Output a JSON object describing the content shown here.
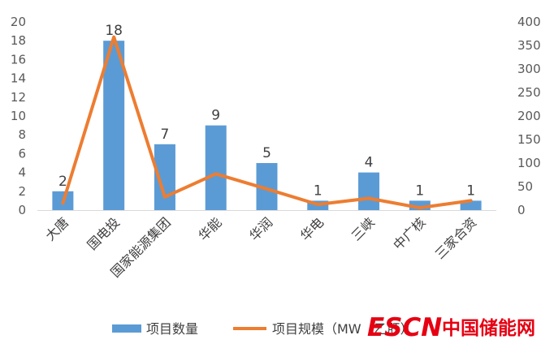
{
  "chart_data": {
    "type": "bar",
    "categories": [
      "大唐",
      "国电投",
      "国家能源集团",
      "华能",
      "华润",
      "华电",
      "三峡",
      "中广核",
      "三家合资"
    ],
    "series": [
      {
        "name": "项目数量",
        "type": "bar",
        "axis": "left",
        "color": "#5B9BD5",
        "values": [
          2,
          18,
          7,
          9,
          5,
          1,
          4,
          1,
          1
        ],
        "data_labels": [
          "2",
          "18",
          "7",
          "9",
          "5",
          "1",
          "4",
          "1",
          "1"
        ]
      },
      {
        "name": "项目规模（MW（乙肝）",
        "type": "line",
        "axis": "right",
        "color": "#ED7D31",
        "values": [
          15,
          368,
          28,
          77,
          45,
          12,
          25,
          5,
          20
        ]
      }
    ],
    "y_left": {
      "min": 0,
      "max": 20,
      "step": 2
    },
    "y_right": {
      "min": 0,
      "max": 400,
      "step": 50
    },
    "grid": false,
    "legend_position": "bottom"
  },
  "watermark": {
    "logo_text": "ESCN",
    "site_name": "中国储能网",
    "color": "#e60012"
  }
}
